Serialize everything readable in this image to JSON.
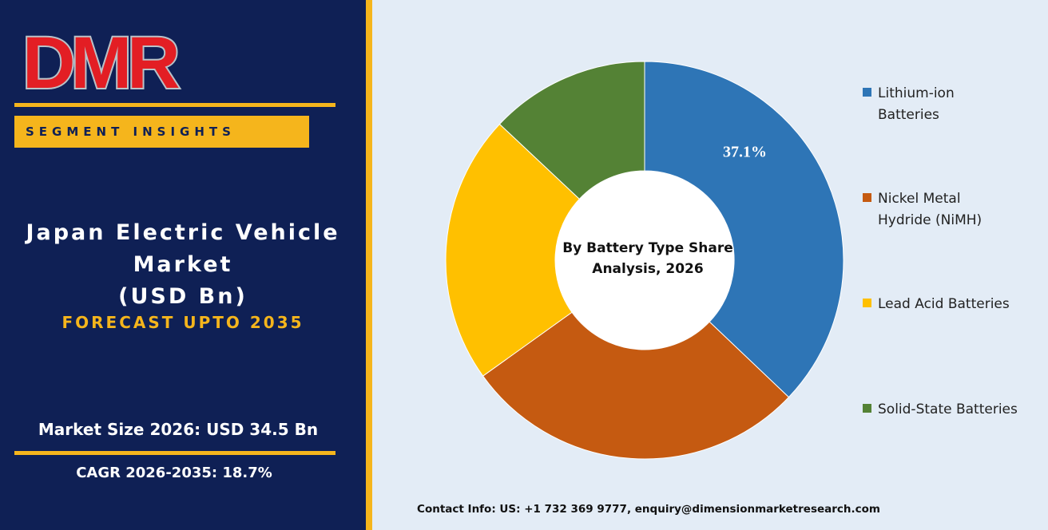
{
  "brand": {
    "logo_text": "DMR"
  },
  "header": {
    "segment_label": "SEGMENT INSIGHTS"
  },
  "title": {
    "line1": "Japan Electric Vehicle",
    "line2": "Market",
    "line3": "(USD Bn)",
    "forecast": "FORECAST UPTO 2035"
  },
  "stats": {
    "market_size": "Market Size 2026: USD 34.5 Bn",
    "cagr": "CAGR 2026-2035: 18.7%"
  },
  "contact": "Contact Info: US: +1 732 369 9777, enquiry@dimensionmarketresearch.com",
  "colors": {
    "navy": "#0f2055",
    "gold": "#f5b51c",
    "background": "#e3ecf6",
    "logo_red": "#e31e24",
    "logo_gray": "#b9c2c8"
  },
  "chart_data": {
    "type": "pie",
    "style": "donut",
    "center_label": [
      "By Battery Type Share",
      "Analysis, 2026"
    ],
    "legend_position": "right",
    "categories": [
      "Lithium-ion Batteries",
      "Nickel Metal Hydride (NiMH)",
      "Lead Acid Batteries",
      "Solid-State Batteries"
    ],
    "legend_lines": [
      [
        "Lithium-ion",
        "Batteries"
      ],
      [
        "Nickel Metal",
        "Hydride (NiMH)"
      ],
      [
        "Lead Acid Batteries"
      ],
      [
        "Solid-State Batteries"
      ]
    ],
    "values": [
      37.1,
      28.0,
      21.9,
      13.0
    ],
    "colors": [
      "#2e75b6",
      "#c55a11",
      "#ffc000",
      "#548235"
    ],
    "data_labels": [
      "37.1%",
      "",
      "",
      ""
    ]
  }
}
